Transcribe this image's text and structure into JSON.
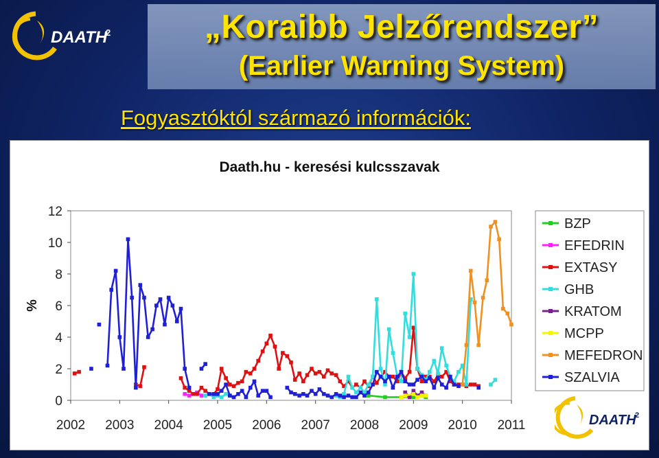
{
  "slide": {
    "title_line1": "„Koraibb Jelzőrendszer”",
    "title_line2": "(Earlier Warning System)",
    "subtitle": "Fogyasztóktól származó információk:",
    "logo_text": "DAATH",
    "logo_sup": "2"
  },
  "colors": {
    "title": "#ffe400",
    "background": "#10266a",
    "logo_ring": "#f2c200"
  },
  "chart_data": {
    "type": "line",
    "title": "Daath.hu - keresési kulcsszavak",
    "xlabel": "",
    "ylabel": "%",
    "xlim": [
      2002,
      2011
    ],
    "ylim": [
      0,
      12
    ],
    "xticks": [
      "2002",
      "2003",
      "2004",
      "2005",
      "2006",
      "2007",
      "2008",
      "2009",
      "2010",
      "2011"
    ],
    "yticks": [
      "0",
      "2",
      "4",
      "6",
      "8",
      "10",
      "12"
    ],
    "legend_position": "right",
    "series": [
      {
        "name": "BZP",
        "color": "#22cc22",
        "points": [
          [
            2008.08,
            0.3
          ],
          [
            2008.42,
            0.2
          ],
          [
            2008.75,
            0.2
          ],
          [
            2009.0,
            0.2
          ],
          [
            2009.17,
            0.3
          ],
          [
            2009.25,
            0.2
          ]
        ]
      },
      {
        "name": "EFEDRIN",
        "color": "#ff22ff",
        "points": [
          [
            2004.33,
            0.4
          ],
          [
            2004.42,
            0.3
          ],
          [
            2004.58,
            0.5
          ],
          [
            2004.67,
            0.3
          ]
        ]
      },
      {
        "name": "EXTASY",
        "color": "#dd1111",
        "points": [
          [
            2002.08,
            1.7
          ],
          [
            2002.17,
            1.8
          ],
          null,
          [
            2003.33,
            1.0
          ],
          [
            2003.42,
            0.9
          ],
          [
            2003.5,
            2.1
          ],
          null,
          [
            2004.25,
            1.4
          ],
          [
            2004.33,
            0.8
          ],
          [
            2004.42,
            0.6
          ],
          [
            2004.5,
            0.4
          ],
          [
            2004.58,
            0.4
          ],
          [
            2004.67,
            0.8
          ],
          [
            2004.75,
            0.6
          ],
          [
            2004.83,
            0.4
          ],
          [
            2004.92,
            0.4
          ],
          [
            2005.0,
            0.7
          ],
          [
            2005.08,
            2.0
          ],
          [
            2005.17,
            1.4
          ],
          [
            2005.25,
            1.0
          ],
          [
            2005.33,
            0.9
          ],
          [
            2005.42,
            1.1
          ],
          [
            2005.5,
            1.2
          ],
          [
            2005.58,
            1.8
          ],
          [
            2005.67,
            1.7
          ],
          [
            2005.75,
            2.0
          ],
          [
            2005.83,
            2.5
          ],
          [
            2005.92,
            3.1
          ],
          [
            2006.0,
            3.6
          ],
          [
            2006.08,
            4.1
          ],
          [
            2006.17,
            3.4
          ],
          [
            2006.25,
            2.0
          ],
          [
            2006.33,
            3.0
          ],
          [
            2006.42,
            2.8
          ],
          [
            2006.5,
            2.4
          ],
          [
            2006.58,
            1.3
          ],
          [
            2006.67,
            1.7
          ],
          [
            2006.75,
            1.2
          ],
          [
            2006.83,
            1.6
          ],
          [
            2006.92,
            2.0
          ],
          [
            2007.0,
            1.7
          ],
          [
            2007.08,
            1.8
          ],
          [
            2007.17,
            1.5
          ],
          [
            2007.25,
            1.9
          ],
          [
            2007.33,
            1.7
          ],
          [
            2007.42,
            1.6
          ],
          [
            2007.5,
            1.2
          ],
          [
            2007.58,
            0.9
          ],
          [
            2007.67,
            1.2
          ],
          [
            2007.75,
            0.8
          ],
          [
            2007.83,
            1.0
          ],
          [
            2007.92,
            0.8
          ],
          [
            2008.0,
            1.2
          ],
          [
            2008.08,
            0.9
          ],
          [
            2008.17,
            1.5
          ],
          [
            2008.25,
            1.1
          ],
          [
            2008.33,
            1.5
          ],
          [
            2008.42,
            1.8
          ],
          [
            2008.5,
            1.5
          ],
          [
            2008.58,
            1.5
          ],
          [
            2008.67,
            1.2
          ],
          [
            2008.75,
            1.8
          ],
          [
            2008.83,
            1.4
          ],
          [
            2008.92,
            1.8
          ],
          [
            2009.0,
            4.6
          ],
          [
            2009.08,
            2.0
          ],
          [
            2009.17,
            1.2
          ],
          [
            2009.25,
            1.5
          ],
          [
            2009.33,
            1.5
          ],
          [
            2009.42,
            1.2
          ],
          [
            2009.5,
            1.6
          ],
          [
            2009.58,
            1.5
          ],
          [
            2009.67,
            1.8
          ],
          [
            2009.75,
            1.2
          ],
          [
            2009.83,
            1.0
          ],
          [
            2009.92,
            1.0
          ],
          [
            2010.0,
            1.0
          ],
          [
            2010.08,
            0.9
          ],
          [
            2010.17,
            1.0
          ],
          [
            2010.25,
            1.0
          ],
          [
            2010.33,
            0.9
          ]
        ]
      },
      {
        "name": "GHB",
        "color": "#33dddd",
        "points": [
          [
            2004.75,
            0.3
          ],
          [
            2004.83,
            0.4
          ],
          [
            2004.92,
            0.2
          ],
          [
            2005.0,
            0.3
          ],
          [
            2005.08,
            0.2
          ],
          [
            2005.17,
            0.4
          ],
          [
            2005.25,
            0.3
          ],
          [
            2005.33,
            0.2
          ],
          null,
          [
            2007.42,
            0.3
          ],
          [
            2007.5,
            0.2
          ],
          [
            2007.58,
            0.4
          ],
          [
            2007.67,
            1.5
          ],
          [
            2007.75,
            0.8
          ],
          [
            2007.83,
            0.5
          ],
          [
            2007.92,
            0.8
          ],
          [
            2008.0,
            0.5
          ],
          [
            2008.08,
            1.0
          ],
          [
            2008.17,
            1.5
          ],
          [
            2008.25,
            6.4
          ],
          [
            2008.33,
            2.0
          ],
          [
            2008.42,
            1.0
          ],
          [
            2008.5,
            4.5
          ],
          [
            2008.58,
            3.0
          ],
          [
            2008.67,
            1.5
          ],
          [
            2008.75,
            1.2
          ],
          [
            2008.83,
            5.5
          ],
          [
            2008.92,
            4.0
          ],
          [
            2009.0,
            8.0
          ],
          [
            2009.08,
            2.0
          ],
          [
            2009.17,
            1.6
          ],
          [
            2009.25,
            1.3
          ],
          [
            2009.33,
            1.8
          ],
          [
            2009.42,
            2.5
          ],
          [
            2009.5,
            1.7
          ],
          [
            2009.58,
            3.3
          ],
          [
            2009.67,
            2.2
          ],
          [
            2009.75,
            1.5
          ],
          [
            2009.83,
            1.2
          ],
          [
            2009.92,
            1.8
          ],
          [
            2010.0,
            2.2
          ],
          [
            2010.08,
            1.0
          ],
          [
            2010.17,
            6.4
          ],
          null,
          [
            2010.58,
            1.0
          ],
          [
            2010.67,
            1.3
          ]
        ]
      },
      {
        "name": "KRATOM",
        "color": "#7a1f8f",
        "points": [
          [
            2008.83,
            0.5
          ],
          [
            2008.92,
            0.2
          ],
          [
            2009.0,
            0.6
          ],
          [
            2009.08,
            0.3
          ],
          [
            2009.17,
            0.5
          ],
          [
            2009.25,
            0.3
          ]
        ]
      },
      {
        "name": "MCPP",
        "color": "#f5f500",
        "points": [
          [
            2008.75,
            0.2
          ],
          [
            2008.83,
            0.3
          ],
          [
            2009.0,
            0.4
          ],
          [
            2009.08,
            0.2
          ],
          [
            2009.17,
            0.3
          ],
          [
            2009.25,
            0.3
          ]
        ]
      },
      {
        "name": "MEFEDRON",
        "color": "#f09020",
        "points": [
          [
            2010.0,
            1.0
          ],
          [
            2010.08,
            3.5
          ],
          [
            2010.17,
            8.2
          ],
          [
            2010.25,
            6.2
          ],
          [
            2010.33,
            3.5
          ],
          [
            2010.42,
            6.5
          ],
          [
            2010.5,
            7.6
          ],
          [
            2010.58,
            11.0
          ],
          [
            2010.67,
            11.3
          ],
          [
            2010.75,
            10.2
          ],
          [
            2010.83,
            5.8
          ],
          [
            2010.92,
            5.5
          ],
          [
            2011.0,
            4.8
          ]
        ]
      },
      {
        "name": "SZALVIA",
        "color": "#1f1fd6",
        "points": [
          [
            2002.42,
            2.0
          ],
          null,
          [
            2002.58,
            4.8
          ],
          null,
          [
            2002.75,
            2.2
          ],
          [
            2002.83,
            7.0
          ],
          [
            2002.92,
            8.2
          ],
          [
            2003.0,
            4.0
          ],
          [
            2003.08,
            2.0
          ],
          [
            2003.17,
            10.2
          ],
          [
            2003.25,
            6.5
          ],
          [
            2003.33,
            0.8
          ],
          [
            2003.42,
            7.3
          ],
          [
            2003.5,
            6.5
          ],
          [
            2003.58,
            4.0
          ],
          [
            2003.67,
            4.5
          ],
          [
            2003.75,
            6.0
          ],
          [
            2003.83,
            6.4
          ],
          [
            2003.92,
            4.8
          ],
          [
            2004.0,
            6.5
          ],
          [
            2004.08,
            6.0
          ],
          [
            2004.17,
            5.0
          ],
          [
            2004.25,
            5.8
          ],
          [
            2004.33,
            2.0
          ],
          [
            2004.42,
            0.8
          ],
          null,
          [
            2004.67,
            2.0
          ],
          [
            2004.75,
            2.3
          ],
          null,
          [
            2004.83,
            0.4
          ],
          [
            2004.92,
            0.4
          ],
          [
            2005.0,
            0.4
          ],
          [
            2005.08,
            0.6
          ],
          [
            2005.17,
            1.0
          ],
          [
            2005.25,
            0.3
          ],
          [
            2005.33,
            0.2
          ],
          [
            2005.42,
            0.4
          ],
          [
            2005.5,
            0.6
          ],
          [
            2005.58,
            0.2
          ],
          [
            2005.67,
            0.8
          ],
          [
            2005.75,
            1.2
          ],
          [
            2005.83,
            0.3
          ],
          [
            2005.92,
            0.6
          ],
          [
            2006.0,
            0.6
          ],
          [
            2006.08,
            0.2
          ],
          null,
          [
            2006.42,
            0.8
          ],
          [
            2006.5,
            0.5
          ],
          [
            2006.58,
            0.4
          ],
          [
            2006.67,
            0.3
          ],
          [
            2006.75,
            0.4
          ],
          [
            2006.83,
            0.3
          ],
          [
            2006.92,
            0.6
          ],
          [
            2007.0,
            0.4
          ],
          [
            2007.08,
            0.7
          ],
          [
            2007.17,
            0.4
          ],
          [
            2007.25,
            0.3
          ],
          [
            2007.33,
            0.2
          ],
          [
            2007.42,
            0.4
          ],
          [
            2007.5,
            0.3
          ],
          [
            2007.58,
            0.2
          ],
          [
            2007.67,
            0.3
          ],
          [
            2007.75,
            0.2
          ],
          [
            2007.83,
            0.2
          ],
          [
            2007.92,
            0.5
          ],
          [
            2008.0,
            0.3
          ],
          [
            2008.08,
            0.5
          ],
          [
            2008.17,
            1.0
          ],
          [
            2008.25,
            1.8
          ],
          [
            2008.33,
            1.5
          ],
          [
            2008.42,
            1.2
          ],
          [
            2008.5,
            1.5
          ],
          [
            2008.58,
            0.8
          ],
          [
            2008.67,
            1.5
          ],
          [
            2008.75,
            1.8
          ],
          [
            2008.83,
            1.2
          ],
          [
            2008.92,
            1.0
          ],
          [
            2009.0,
            1.0
          ],
          [
            2009.08,
            1.3
          ],
          [
            2009.17,
            1.5
          ],
          [
            2009.25,
            1.2
          ],
          [
            2009.33,
            1.4
          ],
          [
            2009.42,
            0.8
          ],
          [
            2009.5,
            1.4
          ],
          [
            2009.58,
            1.0
          ],
          [
            2009.67,
            0.8
          ],
          [
            2009.75,
            1.5
          ],
          [
            2009.83,
            1.0
          ],
          [
            2009.92,
            0.9
          ],
          null,
          [
            2010.33,
            0.8
          ]
        ]
      }
    ]
  }
}
